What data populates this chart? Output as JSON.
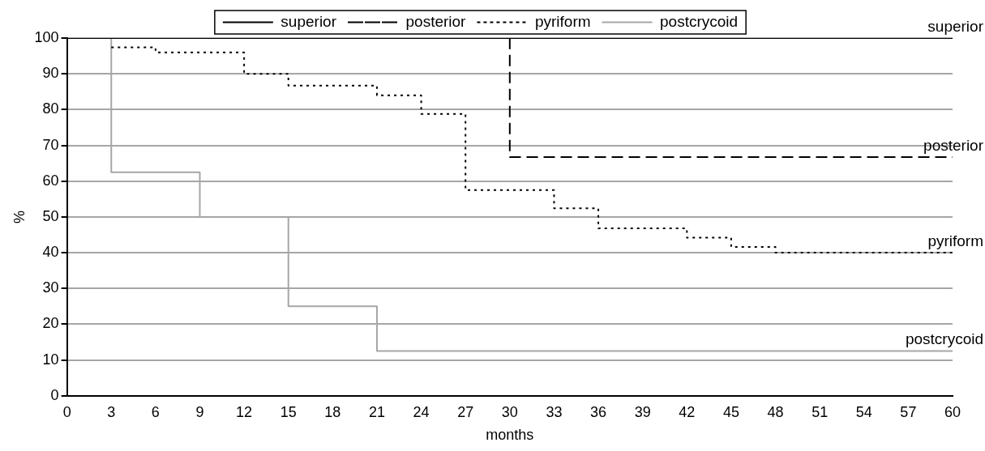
{
  "chart_data": {
    "type": "step",
    "xlabel": "months",
    "ylabel": "%",
    "xlim": [
      0,
      60
    ],
    "xticks": [
      0,
      3,
      6,
      9,
      12,
      15,
      18,
      21,
      24,
      27,
      30,
      33,
      36,
      39,
      42,
      45,
      48,
      51,
      54,
      57,
      60
    ],
    "ylim": [
      0,
      100
    ],
    "yticks": [
      0,
      10,
      20,
      30,
      40,
      50,
      60,
      70,
      80,
      90,
      100
    ],
    "grid": "y",
    "legend": "top",
    "marker": "none",
    "series": [
      {
        "name": "superior",
        "color": "#000000",
        "line_style": "solid",
        "x": [
          0,
          60
        ],
        "values": [
          100,
          100
        ]
      },
      {
        "name": "posterior",
        "color": "#000000",
        "line_style": "dashed",
        "x": [
          0,
          30,
          60
        ],
        "values": [
          100,
          66.7,
          66.7
        ]
      },
      {
        "name": "pyriform",
        "color": "#000000",
        "line_style": "dotted",
        "x": [
          3,
          6,
          12,
          15,
          21,
          24,
          27,
          33,
          36,
          42,
          45,
          48,
          60
        ],
        "values": [
          97.4,
          96,
          90,
          86.7,
          84,
          78.8,
          57.5,
          52.4,
          46.8,
          44.2,
          41.6,
          40,
          40
        ]
      },
      {
        "name": "postcrycoid",
        "color": "#a6a6a6",
        "line_style": "solid",
        "x": [
          0,
          3,
          9,
          15,
          21,
          60
        ],
        "values": [
          100,
          62.5,
          50,
          25,
          12.5,
          12.5
        ]
      }
    ]
  }
}
